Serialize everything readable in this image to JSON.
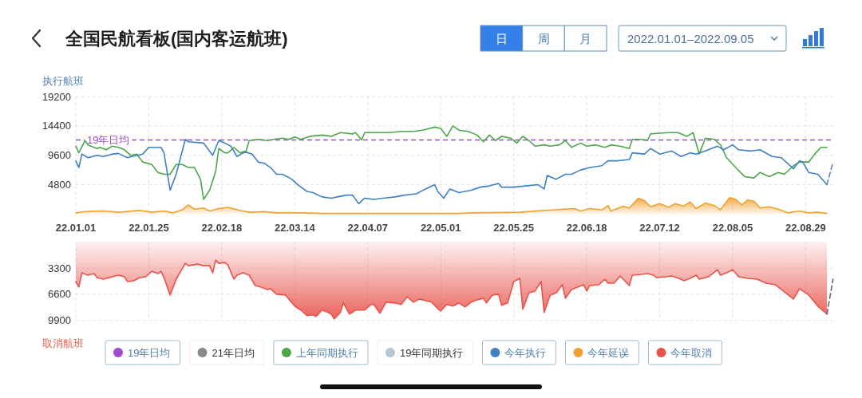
{
  "chart_data": [
    {
      "type": "line",
      "title": "全国民航看板(国内客运航班)",
      "annotations": [
        "日",
        "周",
        "月",
        "2022.01.01–2022.09.05"
      ],
      "ylabel": "执行航班",
      "xlim": [
        "2022-01-01",
        "2022-09-07"
      ],
      "xticks": [
        {
          "value": "2022-01-01",
          "label": "22.01.01"
        },
        {
          "value": "2022-01-25",
          "label": "22.01.25"
        },
        {
          "value": "2022-02-18",
          "label": "22.02.18"
        },
        {
          "value": "2022-03-14",
          "label": "22.03.14"
        },
        {
          "value": "2022-04-07",
          "label": "22.04.07"
        },
        {
          "value": "2022-05-01",
          "label": "22.05.01"
        },
        {
          "value": "2022-05-25",
          "label": "22.05.25"
        },
        {
          "value": "2022-06-18",
          "label": "22.06.18"
        },
        {
          "value": "2022-07-12",
          "label": "22.07.12"
        },
        {
          "value": "2022-08-05",
          "label": "22.08.05"
        },
        {
          "value": "2022-08-29",
          "label": "22.08.29"
        }
      ],
      "ylim": [
        0,
        19200
      ],
      "yticks": [
        4800,
        9600,
        14400,
        19200
      ],
      "grid": true,
      "legend": "bottom",
      "ref_lines": [
        {
          "axis": "y",
          "value": 12100,
          "label": "19年日均",
          "color": "#a04ad0",
          "line_style": "dashed"
        }
      ],
      "series": [
        {
          "name": "21年日均",
          "color": "#8a8a8a"
        },
        {
          "name": "上年同期执行",
          "color": "#4ea64a",
          "x": [
            "2022-01-01",
            "2022-01-02",
            "2022-01-04",
            "2022-01-05",
            "2022-01-08",
            "2022-01-09",
            "2022-01-11",
            "2022-01-13",
            "2022-01-15",
            "2022-01-17",
            "2022-01-19",
            "2022-01-21",
            "2022-01-23",
            "2022-01-26",
            "2022-01-28",
            "2022-01-30",
            "2022-02-01",
            "2022-02-03",
            "2022-02-05",
            "2022-02-07",
            "2022-02-09",
            "2022-02-11",
            "2022-02-12",
            "2022-02-14",
            "2022-02-16",
            "2022-02-17",
            "2022-02-19",
            "2022-02-20",
            "2022-02-22",
            "2022-02-24",
            "2022-02-26",
            "2022-02-27",
            "2022-03-02",
            "2022-03-05",
            "2022-03-07",
            "2022-03-10",
            "2022-03-12",
            "2022-03-14",
            "2022-03-16",
            "2022-03-19",
            "2022-03-23",
            "2022-03-26",
            "2022-03-29",
            "2022-04-02",
            "2022-04-03",
            "2022-04-05",
            "2022-04-06",
            "2022-04-09",
            "2022-04-14",
            "2022-04-18",
            "2022-04-22",
            "2022-04-25",
            "2022-04-29",
            "2022-05-01",
            "2022-05-03",
            "2022-05-05",
            "2022-05-07",
            "2022-05-10",
            "2022-05-13",
            "2022-05-15",
            "2022-05-17",
            "2022-05-19",
            "2022-05-21",
            "2022-05-24",
            "2022-05-26",
            "2022-05-28",
            "2022-05-30",
            "2022-06-01",
            "2022-06-04",
            "2022-06-06",
            "2022-06-09",
            "2022-06-11",
            "2022-06-13",
            "2022-06-16",
            "2022-06-18",
            "2022-06-21",
            "2022-06-24",
            "2022-06-26",
            "2022-06-29",
            "2022-07-02",
            "2022-07-03",
            "2022-07-06",
            "2022-07-08",
            "2022-07-09",
            "2022-07-12",
            "2022-07-15",
            "2022-07-18",
            "2022-07-21",
            "2022-07-23",
            "2022-07-25",
            "2022-07-27",
            "2022-07-30",
            "2022-08-01",
            "2022-08-03",
            "2022-08-06",
            "2022-08-09",
            "2022-08-12",
            "2022-08-14",
            "2022-08-17",
            "2022-08-20",
            "2022-08-22",
            "2022-08-25",
            "2022-08-27",
            "2022-08-30",
            "2022-09-01",
            "2022-09-03",
            "2022-09-05"
          ],
          "values": [
            11100,
            10000,
            12000,
            11300,
            10700,
            10900,
            10500,
            11100,
            10900,
            10500,
            9600,
            9800,
            8500,
            8100,
            6800,
            6500,
            6500,
            8100,
            8100,
            7600,
            7600,
            5700,
            2400,
            3900,
            7000,
            10700,
            10000,
            10000,
            10900,
            10000,
            10300,
            12000,
            12200,
            12000,
            12200,
            12400,
            12200,
            12600,
            12200,
            12700,
            12900,
            12700,
            13300,
            13100,
            13300,
            12100,
            13300,
            13300,
            13300,
            13500,
            13500,
            13700,
            14200,
            14000,
            12700,
            14400,
            13700,
            13500,
            12900,
            11800,
            12900,
            12000,
            12700,
            12400,
            11600,
            12700,
            12000,
            11100,
            11300,
            11100,
            11300,
            12000,
            10900,
            11600,
            11100,
            11300,
            10900,
            11300,
            11100,
            10700,
            12200,
            12200,
            12000,
            13100,
            13200,
            13300,
            13300,
            12700,
            13300,
            9800,
            12400,
            12200,
            11300,
            9200,
            7600,
            6100,
            5900,
            6800,
            6100,
            6800,
            6500,
            7900,
            8500,
            8500,
            9800,
            10900,
            10900
          ]
        },
        {
          "name": "19年同期执行",
          "color": "#b8c6d0"
        },
        {
          "name": "今年执行",
          "color": "#3f80c4",
          "x": [
            "2022-01-01",
            "2022-01-02",
            "2022-01-03",
            "2022-01-05",
            "2022-01-08",
            "2022-01-10",
            "2022-01-13",
            "2022-01-15",
            "2022-01-18",
            "2022-01-21",
            "2022-01-23",
            "2022-01-25",
            "2022-01-29",
            "2022-01-30",
            "2022-02-01",
            "2022-02-03",
            "2022-02-06",
            "2022-02-07",
            "2022-02-12",
            "2022-02-15",
            "2022-02-17",
            "2022-02-19",
            "2022-02-21",
            "2022-02-23",
            "2022-02-25",
            "2022-02-26",
            "2022-02-28",
            "2022-03-02",
            "2022-03-04",
            "2022-03-06",
            "2022-03-08",
            "2022-03-10",
            "2022-03-13",
            "2022-03-15",
            "2022-03-18",
            "2022-03-20",
            "2022-03-23",
            "2022-03-26",
            "2022-03-28",
            "2022-03-31",
            "2022-04-02",
            "2022-04-04",
            "2022-04-06",
            "2022-04-09",
            "2022-04-12",
            "2022-04-16",
            "2022-04-19",
            "2022-04-23",
            "2022-04-26",
            "2022-04-29",
            "2022-04-30",
            "2022-05-02",
            "2022-05-04",
            "2022-05-07",
            "2022-05-11",
            "2022-05-14",
            "2022-05-17",
            "2022-05-20",
            "2022-05-21",
            "2022-05-25",
            "2022-05-29",
            "2022-06-02",
            "2022-06-04",
            "2022-06-05",
            "2022-06-08",
            "2022-06-11",
            "2022-06-13",
            "2022-06-16",
            "2022-06-19",
            "2022-06-23",
            "2022-06-25",
            "2022-06-28",
            "2022-07-02",
            "2022-07-03",
            "2022-07-07",
            "2022-07-09",
            "2022-07-12",
            "2022-07-16",
            "2022-07-19",
            "2022-07-22",
            "2022-07-24",
            "2022-07-27",
            "2022-07-30",
            "2022-07-31",
            "2022-08-02",
            "2022-08-05",
            "2022-08-07",
            "2022-08-11",
            "2022-08-14",
            "2022-08-18",
            "2022-08-21",
            "2022-08-25",
            "2022-08-27",
            "2022-08-28",
            "2022-08-30",
            "2022-09-02",
            "2022-09-05"
          ],
          "values": [
            8700,
            7600,
            9800,
            9200,
            9600,
            9400,
            9800,
            9900,
            9200,
            9600,
            9800,
            10900,
            10900,
            10000,
            3900,
            6500,
            12200,
            11800,
            11600,
            9600,
            12000,
            11600,
            11100,
            9400,
            10000,
            10100,
            9800,
            8500,
            8300,
            7600,
            6500,
            6500,
            5700,
            4800,
            3700,
            3500,
            2800,
            2600,
            2800,
            3100,
            3100,
            1700,
            2600,
            2400,
            2600,
            2800,
            3100,
            3300,
            4100,
            4800,
            3700,
            2600,
            4100,
            3500,
            3900,
            4400,
            4600,
            5000,
            4400,
            4400,
            4600,
            4800,
            4100,
            6300,
            5700,
            6500,
            6500,
            7200,
            7600,
            7900,
            8700,
            8700,
            8900,
            10000,
            9800,
            10700,
            9800,
            10300,
            9400,
            10000,
            9800,
            10300,
            10900,
            11100,
            10500,
            11300,
            10500,
            10300,
            10500,
            9400,
            9200,
            7400,
            8700,
            8500,
            6800,
            6500,
            4800
          ]
        },
        {
          "name": "今年延误",
          "type": "area",
          "color": "#f0a030",
          "x": [
            "2022-01-01",
            "2022-01-04",
            "2022-01-10",
            "2022-01-15",
            "2022-01-22",
            "2022-01-26",
            "2022-01-30",
            "2022-02-02",
            "2022-02-05",
            "2022-02-07",
            "2022-02-09",
            "2022-02-12",
            "2022-02-14",
            "2022-02-17",
            "2022-02-20",
            "2022-02-24",
            "2022-02-27",
            "2022-03-04",
            "2022-03-08",
            "2022-03-15",
            "2022-03-24",
            "2022-04-10",
            "2022-04-28",
            "2022-05-07",
            "2022-05-12",
            "2022-05-27",
            "2022-06-04",
            "2022-06-14",
            "2022-06-16",
            "2022-06-19",
            "2022-06-23",
            "2022-06-25",
            "2022-06-26",
            "2022-06-30",
            "2022-07-02",
            "2022-07-05",
            "2022-07-07",
            "2022-07-09",
            "2022-07-12",
            "2022-07-15",
            "2022-07-17",
            "2022-07-20",
            "2022-07-22",
            "2022-07-24",
            "2022-07-27",
            "2022-07-30",
            "2022-08-01",
            "2022-08-04",
            "2022-08-06",
            "2022-08-08",
            "2022-08-10",
            "2022-08-12",
            "2022-08-14",
            "2022-08-17",
            "2022-08-20",
            "2022-08-23",
            "2022-08-27",
            "2022-08-30",
            "2022-09-02",
            "2022-09-05"
          ],
          "values": [
            200,
            400,
            500,
            300,
            600,
            300,
            500,
            200,
            700,
            1500,
            800,
            1000,
            500,
            900,
            1100,
            600,
            300,
            400,
            200,
            200,
            100,
            100,
            100,
            100,
            200,
            300,
            600,
            900,
            500,
            900,
            700,
            1400,
            500,
            1300,
            1000,
            2600,
            2200,
            1200,
            1700,
            1100,
            1700,
            1300,
            2000,
            900,
            1800,
            1400,
            700,
            2700,
            2400,
            1500,
            2300,
            2100,
            1000,
            1200,
            800,
            200,
            500,
            200,
            300,
            100
          ]
        },
        {
          "color": "#5b86b8",
          "line_style": "dashed",
          "x": [
            "2022-09-05",
            "2022-09-07"
          ],
          "values": [
            4800,
            8500
          ]
        }
      ]
    },
    {
      "type": "area",
      "ylabel": "取消航班",
      "xlim": [
        "2022-01-01",
        "2022-09-07"
      ],
      "xticks": [
        {
          "value": "2022-01-01",
          "label": null
        },
        {
          "value": "2022-01-25",
          "label": null
        },
        {
          "value": "2022-02-18",
          "label": null
        },
        {
          "value": "2022-03-14",
          "label": null
        },
        {
          "value": "2022-04-07",
          "label": null
        },
        {
          "value": "2022-05-01",
          "label": null
        },
        {
          "value": "2022-05-25",
          "label": null
        },
        {
          "value": "2022-06-18",
          "label": null
        },
        {
          "value": "2022-07-12",
          "label": null
        },
        {
          "value": "2022-08-05",
          "label": null
        },
        {
          "value": "2022-08-29",
          "label": null
        }
      ],
      "ylim": [
        9900,
        0
      ],
      "yticks": [
        3300,
        6600,
        9900
      ],
      "grid": true,
      "tick_labels": "y",
      "legend": "bottom",
      "series": [
        {
          "name": "今年取消",
          "color": "#e8524a",
          "x": [
            "2022-01-01",
            "2022-01-02",
            "2022-01-03",
            "2022-01-05",
            "2022-01-07",
            "2022-01-08",
            "2022-01-10",
            "2022-01-13",
            "2022-01-15",
            "2022-01-17",
            "2022-01-18",
            "2022-01-20",
            "2022-01-22",
            "2022-01-24",
            "2022-01-26",
            "2022-01-28",
            "2022-01-29",
            "2022-01-30",
            "2022-02-01",
            "2022-02-03",
            "2022-02-06",
            "2022-02-07",
            "2022-02-10",
            "2022-02-12",
            "2022-02-14",
            "2022-02-15",
            "2022-02-16",
            "2022-02-17",
            "2022-02-19",
            "2022-02-20",
            "2022-02-22",
            "2022-02-23",
            "2022-02-25",
            "2022-02-27",
            "2022-03-01",
            "2022-03-03",
            "2022-03-05",
            "2022-03-06",
            "2022-03-08",
            "2022-03-11",
            "2022-03-12",
            "2022-03-14",
            "2022-03-16",
            "2022-03-18",
            "2022-03-20",
            "2022-03-21",
            "2022-03-23",
            "2022-03-25",
            "2022-03-26",
            "2022-03-27",
            "2022-03-29",
            "2022-03-30",
            "2022-04-01",
            "2022-04-03",
            "2022-04-06",
            "2022-04-08",
            "2022-04-09",
            "2022-04-11",
            "2022-04-13",
            "2022-04-16",
            "2022-04-18",
            "2022-04-20",
            "2022-04-22",
            "2022-04-24",
            "2022-04-28",
            "2022-04-30",
            "2022-05-01",
            "2022-05-03",
            "2022-05-05",
            "2022-05-07",
            "2022-05-09",
            "2022-05-11",
            "2022-05-13",
            "2022-05-15",
            "2022-05-16",
            "2022-05-18",
            "2022-05-20",
            "2022-05-21",
            "2022-05-23",
            "2022-05-25",
            "2022-05-27",
            "2022-05-28",
            "2022-05-30",
            "2022-06-01",
            "2022-06-03",
            "2022-06-04",
            "2022-06-06",
            "2022-06-08",
            "2022-06-10",
            "2022-06-11",
            "2022-06-13",
            "2022-06-15",
            "2022-06-17",
            "2022-06-18",
            "2022-06-19",
            "2022-06-22",
            "2022-06-24",
            "2022-06-25",
            "2022-06-27",
            "2022-06-29",
            "2022-07-02",
            "2022-07-03",
            "2022-07-06",
            "2022-07-08",
            "2022-07-10",
            "2022-07-11",
            "2022-07-14",
            "2022-07-16",
            "2022-07-19",
            "2022-07-20",
            "2022-07-22",
            "2022-07-24",
            "2022-07-25",
            "2022-07-28",
            "2022-07-31",
            "2022-08-01",
            "2022-08-03",
            "2022-08-05",
            "2022-08-07",
            "2022-08-10",
            "2022-08-13",
            "2022-08-16",
            "2022-08-19",
            "2022-08-20",
            "2022-08-23",
            "2022-08-25",
            "2022-08-27",
            "2022-08-30",
            "2022-09-02",
            "2022-09-05"
          ],
          "values": [
            5000,
            5700,
            3900,
            4200,
            4000,
            4500,
            4700,
            4400,
            4200,
            4400,
            5000,
            4900,
            4500,
            4400,
            3700,
            4000,
            3700,
            4500,
            6700,
            4700,
            2700,
            3000,
            2800,
            3000,
            3000,
            3900,
            2300,
            2700,
            2600,
            2900,
            4700,
            4200,
            3900,
            4200,
            5500,
            5700,
            6000,
            5900,
            6600,
            6700,
            7200,
            8100,
            8600,
            9300,
            9200,
            9400,
            8600,
            8900,
            9100,
            9700,
            8900,
            7700,
            9100,
            8600,
            8600,
            7900,
            7900,
            9000,
            7600,
            7700,
            7900,
            6900,
            7600,
            7200,
            7600,
            8400,
            8700,
            7900,
            8100,
            7700,
            8200,
            7600,
            7300,
            7100,
            7700,
            6700,
            6600,
            8000,
            7700,
            5000,
            4600,
            8500,
            6400,
            6200,
            5000,
            8900,
            6700,
            6400,
            5400,
            7100,
            6000,
            5700,
            5400,
            6200,
            5500,
            5400,
            4700,
            5200,
            5200,
            4300,
            5500,
            4200,
            4100,
            4000,
            4200,
            4500,
            4400,
            4300,
            4700,
            4900,
            4600,
            4200,
            4700,
            4400,
            3500,
            4200,
            3900,
            3500,
            4400,
            4600,
            4700,
            5200,
            5400,
            5700,
            6600,
            7200,
            5900,
            6700,
            8100,
            9100
          ]
        },
        {
          "type": "line",
          "color": "#666666",
          "line_style": "dashed",
          "x": [
            "2022-09-05",
            "2022-09-07"
          ],
          "values": [
            9100,
            4700
          ]
        }
      ]
    }
  ]
}
